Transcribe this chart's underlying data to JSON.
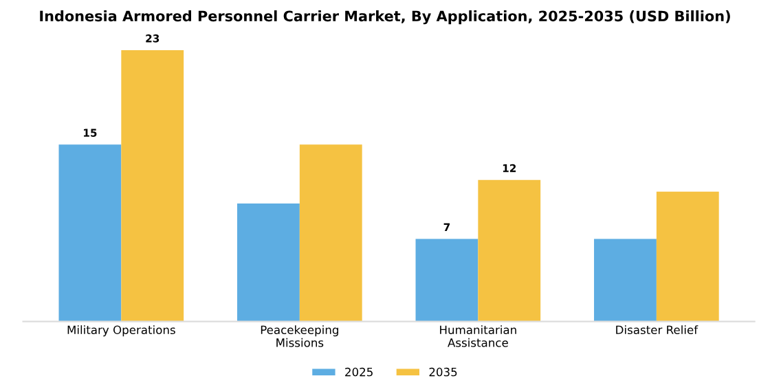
{
  "chart_data": {
    "type": "bar",
    "title": "Indonesia Armored Personnel Carrier Market, By Application, 2025-2035 (USD Billion)",
    "categories": [
      "Military Operations",
      "Peacekeeping\nMissions",
      "Humanitarian\nAssistance",
      "Disaster Relief"
    ],
    "series": [
      {
        "name": "2025",
        "color": "#5dade2",
        "values": [
          15,
          10,
          7,
          7
        ],
        "value_labels": [
          "15",
          null,
          "7",
          null
        ]
      },
      {
        "name": "2035",
        "color": "#f5c242",
        "values": [
          23,
          15,
          12,
          11
        ],
        "value_labels": [
          "23",
          null,
          "12",
          null
        ]
      }
    ],
    "tick_labels": "x",
    "grid": false,
    "legend": "bottom"
  }
}
